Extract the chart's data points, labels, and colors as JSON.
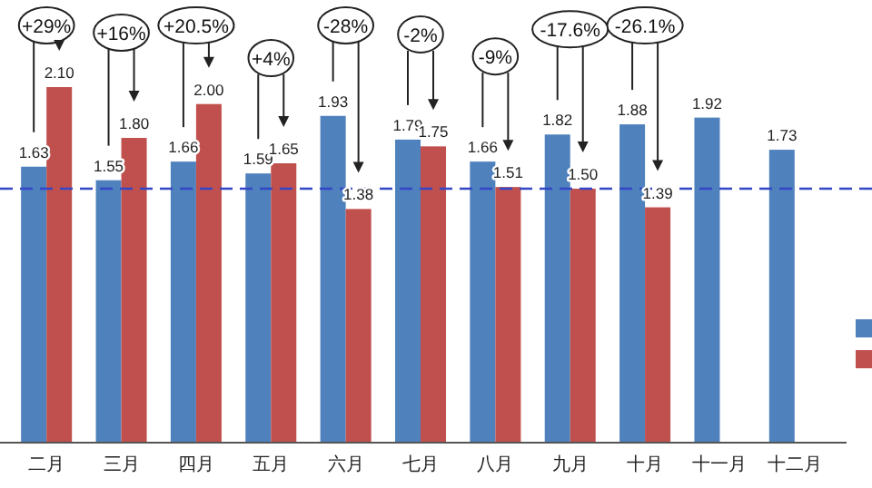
{
  "chart_data": {
    "type": "bar",
    "categories": [
      "二月",
      "三月",
      "四月",
      "五月",
      "六月",
      "七月",
      "八月",
      "九月",
      "十月",
      "十一月",
      "十二月"
    ],
    "series": [
      {
        "color": "#4f81bd",
        "values": [
          1.63,
          1.55,
          1.66,
          1.59,
          1.93,
          1.79,
          1.66,
          1.82,
          1.88,
          1.92,
          1.73
        ],
        "value_labels": [
          "1.63",
          "1.55",
          "1.66",
          "1.59",
          "1.93",
          "1.79",
          "1.66",
          "1.82",
          "1.88",
          "1.92",
          "1.73"
        ]
      },
      {
        "color": "#c0504d",
        "values": [
          2.1,
          1.8,
          2.0,
          1.65,
          1.38,
          1.75,
          1.51,
          1.5,
          1.39,
          null,
          null
        ],
        "value_labels": [
          "2.10",
          "1.80",
          "2.00",
          "1.65",
          "1.38",
          "1.75",
          "1.51",
          "1.50",
          "1.39",
          null,
          null
        ]
      }
    ],
    "ref_lines": [
      {
        "axis": "y",
        "value": 1.5,
        "color": "#3346c8",
        "line_style": "dashed"
      }
    ],
    "annotations": [
      "+29%",
      "+16%",
      "+20.5%",
      "+4%",
      "-28%",
      "-2%",
      "-9%",
      "-17.6%",
      "-26.1%"
    ]
  }
}
